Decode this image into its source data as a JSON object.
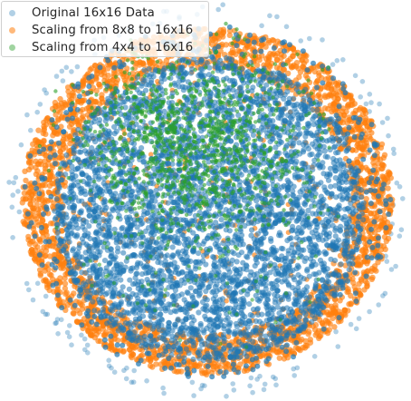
{
  "chart_data": {
    "type": "scatter",
    "title": "",
    "xlabel": "",
    "ylabel": "",
    "axes_visible": false,
    "grid": false,
    "legend_placement": "top-left",
    "series": [
      {
        "name": "Original 16x16 Data",
        "color": "#1f77b4",
        "alpha": 0.35,
        "extent": "outer-ring"
      },
      {
        "name": "Scaling from 8x8 to 16x16",
        "color": "#ff7f0e",
        "alpha": 0.65,
        "extent": "orange-annulus"
      },
      {
        "name": "Scaling from 4x4 to 16x16",
        "color": "#2ca02c",
        "alpha": 0.55,
        "extent": "upper-center-cluster"
      }
    ],
    "note_on_values": "Points are unlabeled embedding coordinates without axes; positions are not recoverable as numeric data."
  }
}
